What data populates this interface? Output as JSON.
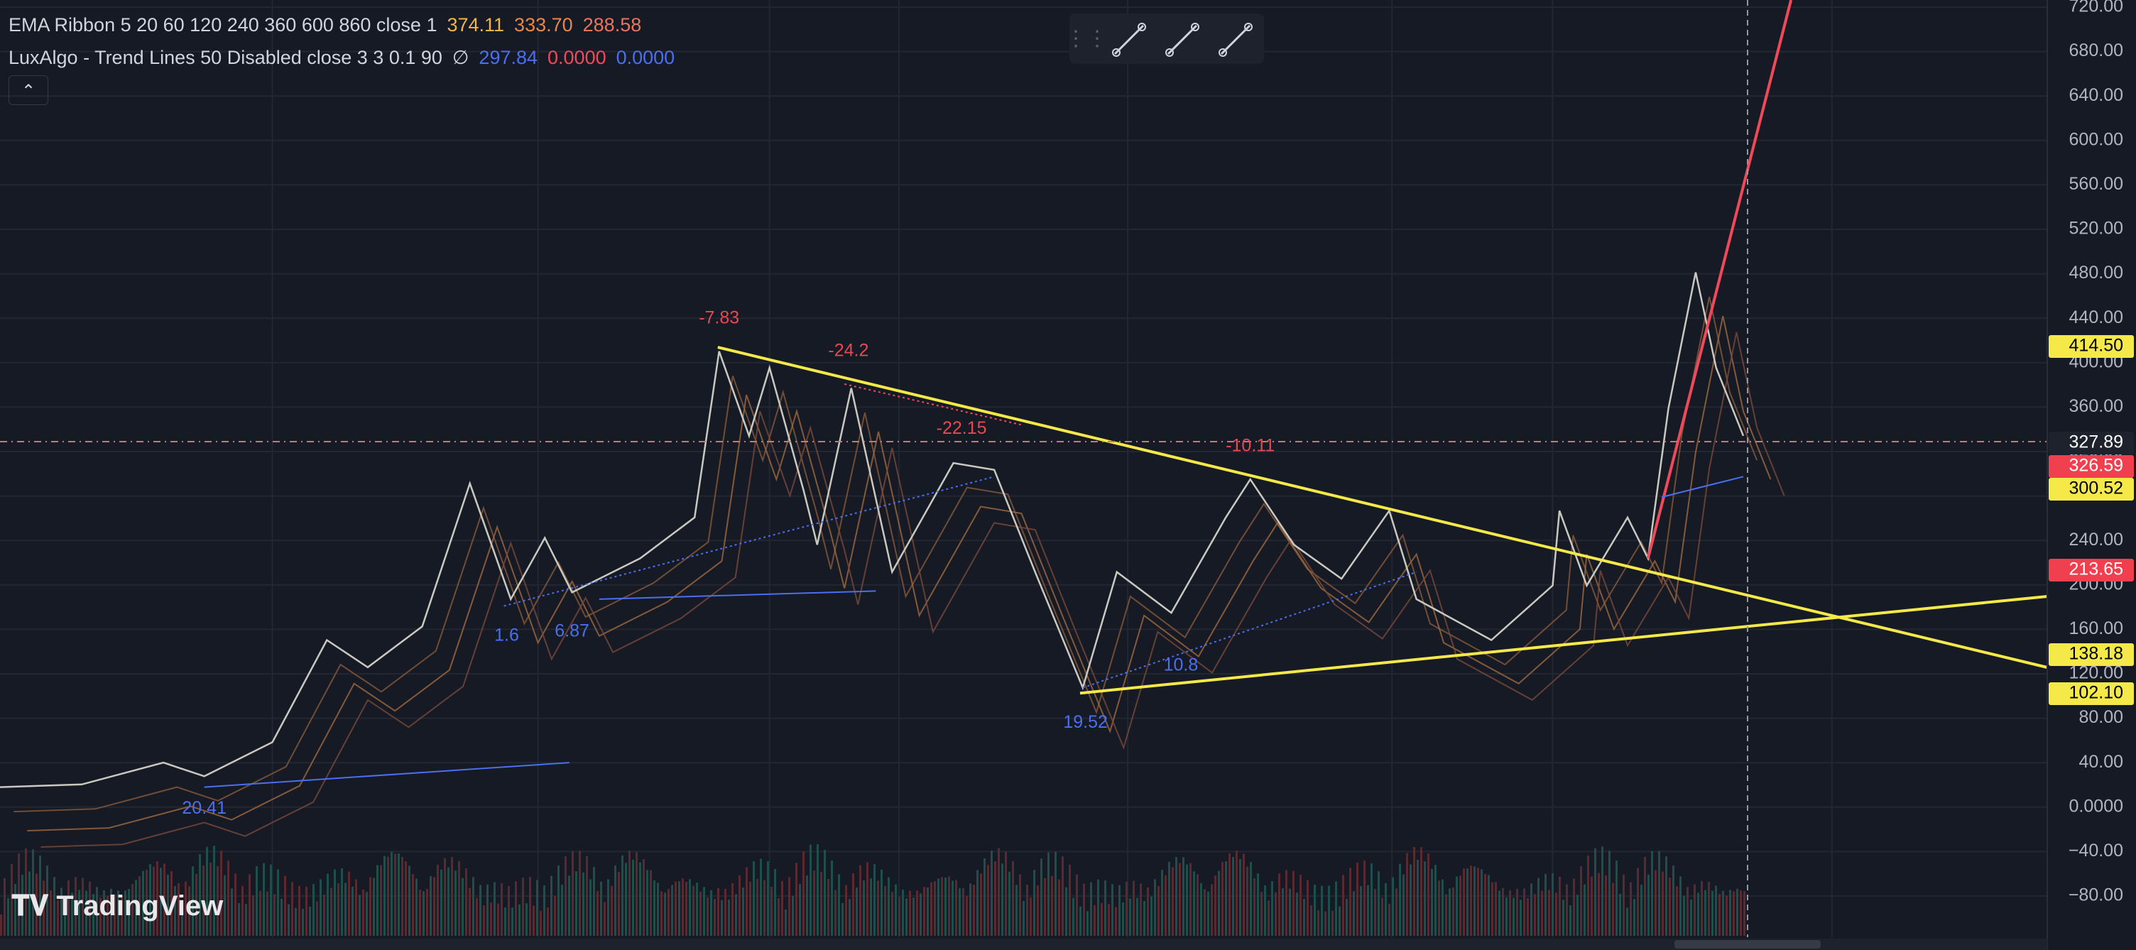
{
  "legend": {
    "ema": {
      "label": "EMA Ribbon 5 20 60 120 240 360 600 860 close 1",
      "values": [
        {
          "text": "374.11",
          "color": "#f0b44a"
        },
        {
          "text": "333.70",
          "color": "#e8874a"
        },
        {
          "text": "288.58",
          "color": "#e8765e"
        }
      ]
    },
    "luxalgo": {
      "label": "LuxAlgo - Trend Lines 50 Disabled close 3 3 0.1 90",
      "symbol": "∅",
      "values": [
        {
          "text": "297.84",
          "color": "#4a6ff0"
        },
        {
          "text": "0.0000",
          "color": "#f04a5a"
        },
        {
          "text": "0.0000",
          "color": "#4a6ff0"
        }
      ]
    }
  },
  "price_axis": {
    "ticks": [
      "720.00",
      "680.00",
      "640.00",
      "600.00",
      "560.00",
      "520.00",
      "480.00",
      "440.00",
      "400.00",
      "360.00",
      "320.00",
      "280.00",
      "240.00",
      "200.00",
      "160.00",
      "120.00",
      "80.00",
      "40.00",
      "0.0000",
      "−40.00",
      "−80.00"
    ]
  },
  "price_labels": [
    {
      "text": "414.50",
      "color": "#f5e94a"
    },
    {
      "text": "327.89",
      "color": "#1e222d"
    },
    {
      "text": "326.59",
      "color": "#f0404f"
    },
    {
      "text": "300.52",
      "color": "#f5e94a"
    },
    {
      "text": "213.65",
      "color": "#f0404f"
    },
    {
      "text": "138.18",
      "color": "#f5e94a"
    },
    {
      "text": "102.10",
      "color": "#f5e94a"
    }
  ],
  "annotations": [
    {
      "text": "-7.83",
      "color": "#e8484f"
    },
    {
      "text": "-24.2",
      "color": "#e8484f"
    },
    {
      "text": "-22.15",
      "color": "#e8484f"
    },
    {
      "text": "-10.11",
      "color": "#e8484f"
    },
    {
      "text": "1.6",
      "color": "#4a6ff0"
    },
    {
      "text": "6.87",
      "color": "#4a6ff0"
    },
    {
      "text": "10.8",
      "color": "#4a6ff0"
    },
    {
      "text": "19.52",
      "color": "#4a6ff0"
    },
    {
      "text": "20.41",
      "color": "#4a6ff0"
    }
  ],
  "logo": "TradingView"
}
